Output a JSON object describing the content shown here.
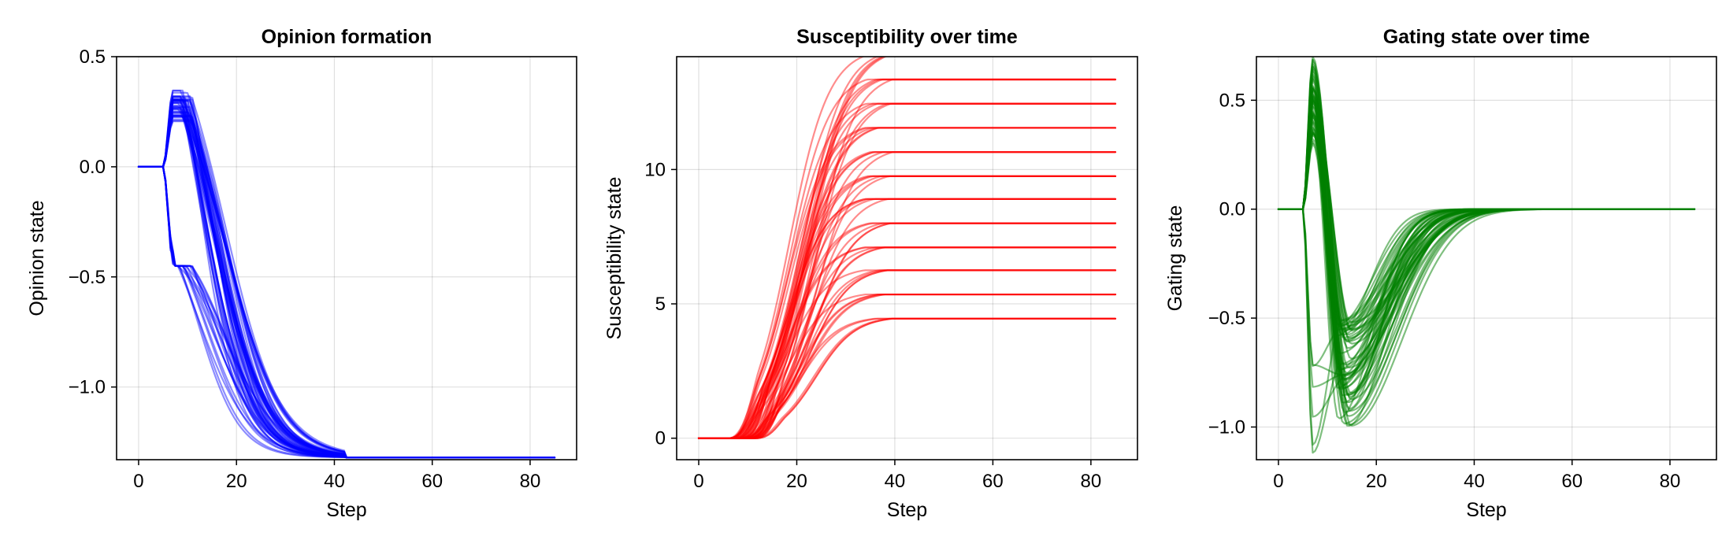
{
  "chart_data": [
    {
      "type": "line",
      "title": "Opinion formation",
      "xlabel": "Step",
      "ylabel": "Opinion state",
      "xlim": [
        -4.5,
        89.5
      ],
      "ylim": [
        -1.33,
        0.5
      ],
      "xticks": [
        0,
        20,
        40,
        60,
        80
      ],
      "xtick_labels": [
        "0",
        "20",
        "40",
        "60",
        "80"
      ],
      "yticks": [
        -1.0,
        -0.5,
        0.0,
        0.5
      ],
      "ytick_labels": [
        "−1.0",
        "−0.5",
        "0.0",
        "0.5"
      ],
      "grid": true,
      "line_color": "#0000ff",
      "line_opacity": 0.45,
      "series_count": 60,
      "x_range": [
        0,
        85
      ],
      "feature_points": {
        "initial_value": 0.0,
        "hold_until_step": 5,
        "peak_step": 7,
        "peak_range": [
          0.2,
          0.35
        ],
        "branch_low_at_step_7": -0.45,
        "final_value": -1.32,
        "settled_by_step": 42
      }
    },
    {
      "type": "line",
      "title": "Susceptibility over time",
      "xlabel": "Step",
      "ylabel": "Susceptibility state",
      "xlim": [
        -4.5,
        89.5
      ],
      "ylim": [
        -0.8,
        14.2
      ],
      "xticks": [
        0,
        20,
        40,
        60,
        80
      ],
      "xtick_labels": [
        "0",
        "20",
        "40",
        "60",
        "80"
      ],
      "yticks": [
        0,
        5,
        10
      ],
      "ytick_labels": [
        "0",
        "5",
        "10"
      ],
      "grid": true,
      "line_color": "#ff0000",
      "line_opacity": 0.45,
      "series_count": 60,
      "x_range": [
        0,
        85
      ],
      "plateau_levels": [
        4.45,
        5.35,
        6.25,
        7.1,
        8.0,
        8.9,
        9.75,
        10.65,
        11.55,
        12.45,
        13.35,
        14.25
      ],
      "feature_points": {
        "initial_value": 0.0,
        "rise_start_range": [
          6,
          12
        ],
        "settled_by_step": 45
      }
    },
    {
      "type": "line",
      "title": "Gating state over time",
      "xlabel": "Step",
      "ylabel": "Gating state",
      "xlim": [
        -4.5,
        89.5
      ],
      "ylim": [
        -1.15,
        0.7
      ],
      "xticks": [
        0,
        20,
        40,
        60,
        80
      ],
      "xtick_labels": [
        "0",
        "20",
        "40",
        "60",
        "80"
      ],
      "yticks": [
        -1.0,
        -0.5,
        0.0,
        0.5
      ],
      "ytick_labels": [
        "−1.0",
        "−0.5",
        "0.0",
        "0.5"
      ],
      "grid": true,
      "line_color": "#008000",
      "line_opacity": 0.5,
      "series_count": 60,
      "x_range": [
        0,
        85
      ],
      "feature_points": {
        "initial_value": 0.0,
        "peak_step": 7,
        "peak_range": [
          0.3,
          0.7
        ],
        "spike_low_range": [
          -1.15,
          -0.1
        ],
        "trough_step_range": [
          12,
          15
        ],
        "trough_range": [
          -1.0,
          -0.5
        ],
        "final_value": 0.0,
        "settled_by_step": 62
      }
    }
  ]
}
